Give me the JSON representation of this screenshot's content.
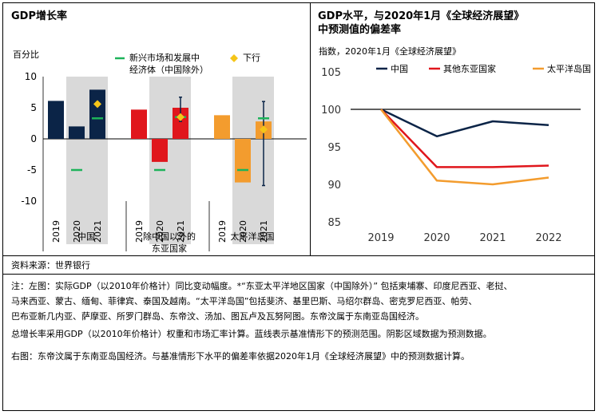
{
  "left_panel": {
    "title": "GDP增长率",
    "ylabel": "百分比",
    "legend_green": "新兴市场和发展中经济体（中国除外）",
    "legend_green_line1": "新兴市场和发展中",
    "legend_green_line2": "经济体（中国除外）",
    "legend_yellow": "下行"
  },
  "right_panel": {
    "title_line1": "GDP水平，与2020年1月《全球经济展望》",
    "title_line2": "中预测值的偏差率",
    "subtitle": "指数，2020年1月《全球经济展望》"
  },
  "source": "资料来源：世界银行",
  "notes": {
    "p1_line1": "注：左图：实际GDP（以2010年价格计）同比变动幅度。*“东亚太平洋地区国家（中国除外）” 包括柬埔寨、印度尼西亚、老挝、",
    "p1_line2": "马来西亚、蒙古、缅甸、菲律宾、泰国及越南。“太平洋岛国”包括斐济、基里巴斯、马绍尔群岛、密克罗尼西亚、帕劳、",
    "p1_line3": "巴布亚新几内亚、萨摩亚、所罗门群岛、东帝汶、汤加、图瓦卢及瓦努阿图。东帝汶属于东南亚岛国经济。",
    "p2": "总增长率采用GDP（以2010年价格计）权重和市场汇率计算。蓝线表示基准情形下的预测范围。阴影区域数据为预测数据。",
    "p3": "右图：东帝汶属于东南亚岛国经济。与基准情形下水平的偏差率依据2020年1月《全球经济展望》中的预测数据计算。"
  },
  "colors": {
    "china": "#0b2447",
    "east_asia": "#e0161c",
    "pacific": "#f39c2e",
    "emde": "#1db35a",
    "downside": "#f5c518",
    "shade": "#d9d9d9",
    "range": "#0b2447"
  },
  "chart_data": [
    {
      "type": "bar",
      "ylim": [
        -10,
        10
      ],
      "yticks": [
        "10",
        "5",
        "0",
        "-5",
        "-10"
      ],
      "groups": [
        {
          "label": "中国",
          "label_line1": "中国",
          "label_line2": "",
          "years": [
            "2019",
            "2020",
            "2021"
          ],
          "values": [
            6.1,
            2.0,
            7.9
          ],
          "emde": [
            null,
            -5.0,
            3.3
          ],
          "downside": [
            null,
            null,
            5.6
          ],
          "range": null,
          "color_key": "china"
        },
        {
          "label": "除中国以外的东亚国家",
          "label_line1": "除中国以外的",
          "label_line2": "东亚国家",
          "years": [
            "2019",
            "2020",
            "2021"
          ],
          "values": [
            4.7,
            -3.7,
            5.0
          ],
          "emde": [
            null,
            -5.0,
            3.5
          ],
          "downside": [
            null,
            null,
            3.5
          ],
          "range": [
            2.8,
            6.7
          ],
          "color_key": "east_asia"
        },
        {
          "label": "太平洋岛国",
          "label_line1": "太平洋岛国",
          "label_line2": "",
          "years": [
            "2019",
            "2020",
            "2021"
          ],
          "values": [
            3.8,
            -7.0,
            2.8
          ],
          "emde": [
            null,
            -5.0,
            3.3
          ],
          "downside": [
            null,
            null,
            1.5
          ],
          "range": [
            -7.5,
            6.0
          ],
          "color_key": "pacific"
        }
      ]
    },
    {
      "type": "line",
      "x": [
        "2019",
        "2020",
        "2021",
        "2022"
      ],
      "ylim": [
        85,
        105
      ],
      "yticks": [
        "105",
        "100",
        "95",
        "90",
        "85"
      ],
      "reference": 100,
      "series": [
        {
          "name": "中国",
          "values": [
            100,
            96.4,
            98.4,
            97.9
          ],
          "color_key": "china"
        },
        {
          "name": "其他东亚国家",
          "values": [
            100,
            92.3,
            92.3,
            92.5
          ],
          "color_key": "east_asia"
        },
        {
          "name": "太平洋岛国",
          "values": [
            100,
            90.5,
            90.0,
            90.9
          ],
          "color_key": "pacific"
        }
      ]
    }
  ]
}
